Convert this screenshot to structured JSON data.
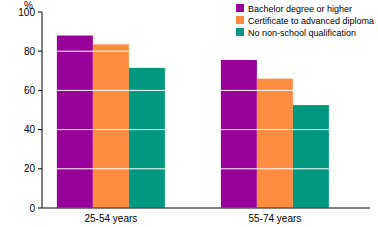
{
  "chart_data": {
    "type": "bar",
    "ylabel": "%",
    "categories": [
      "25-54 years",
      "55-74 years"
    ],
    "series": [
      {
        "name": "Bachelor degree or higher",
        "color": "#990099",
        "values": [
          88,
          75.5
        ]
      },
      {
        "name": "Certificate to advanced diploma",
        "color": "#ff8c40",
        "values": [
          83.5,
          66
        ]
      },
      {
        "name": "No non-school qualification",
        "color": "#009980",
        "values": [
          71.5,
          52.5
        ]
      }
    ],
    "ylim": [
      0,
      100
    ],
    "yticks": [
      0,
      20,
      40,
      60,
      80,
      100
    ],
    "grid": true,
    "legend": "top-right"
  }
}
